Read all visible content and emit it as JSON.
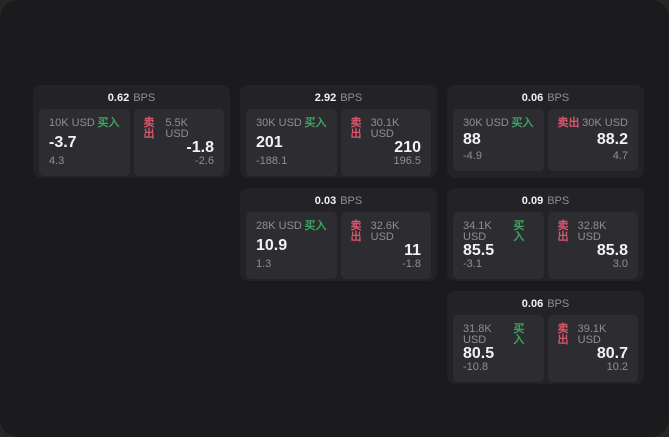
{
  "labels": {
    "bps": "BPS",
    "buy": "买入",
    "sell": "卖出"
  },
  "colors": {
    "page-bg": "#262626",
    "window-bg": "#1b1b1d",
    "card-bg": "#232327",
    "panel-bg": "#2d2d31",
    "text-primary": "#f2f2f2",
    "text-muted": "#8e8e93",
    "buy-green": "#3da263",
    "sell-red": "#d9566d"
  },
  "cards": [
    {
      "row": 1,
      "col": 1,
      "bps": "0.62",
      "buy": {
        "size": "10K USD",
        "price": "-3.7",
        "delta": "4.3"
      },
      "sell": {
        "size": "5.5K USD",
        "price": "-1.8",
        "delta": "-2.6"
      }
    },
    {
      "row": 1,
      "col": 2,
      "bps": "2.92",
      "buy": {
        "size": "30K USD",
        "price": "201",
        "delta": "-188.1"
      },
      "sell": {
        "size": "30.1K USD",
        "price": "210",
        "delta": "196.5"
      }
    },
    {
      "row": 1,
      "col": 3,
      "bps": "0.06",
      "buy": {
        "size": "30K USD",
        "price": "88",
        "delta": "-4.9"
      },
      "sell": {
        "size": "30K USD",
        "price": "88.2",
        "delta": "4.7"
      }
    },
    {
      "row": 2,
      "col": 2,
      "bps": "0.03",
      "buy": {
        "size": "28K USD",
        "price": "10.9",
        "delta": "1.3"
      },
      "sell": {
        "size": "32.6K USD",
        "price": "11",
        "delta": "-1.8"
      }
    },
    {
      "row": 2,
      "col": 3,
      "bps": "0.09",
      "buy": {
        "size": "34.1K USD",
        "price": "85.5",
        "delta": "-3.1"
      },
      "sell": {
        "size": "32.8K USD",
        "price": "85.8",
        "delta": "3.0"
      }
    },
    {
      "row": 3,
      "col": 3,
      "bps": "0.06",
      "buy": {
        "size": "31.8K USD",
        "price": "80.5",
        "delta": "-10.8"
      },
      "sell": {
        "size": "39.1K USD",
        "price": "80.7",
        "delta": "10.2"
      }
    }
  ]
}
